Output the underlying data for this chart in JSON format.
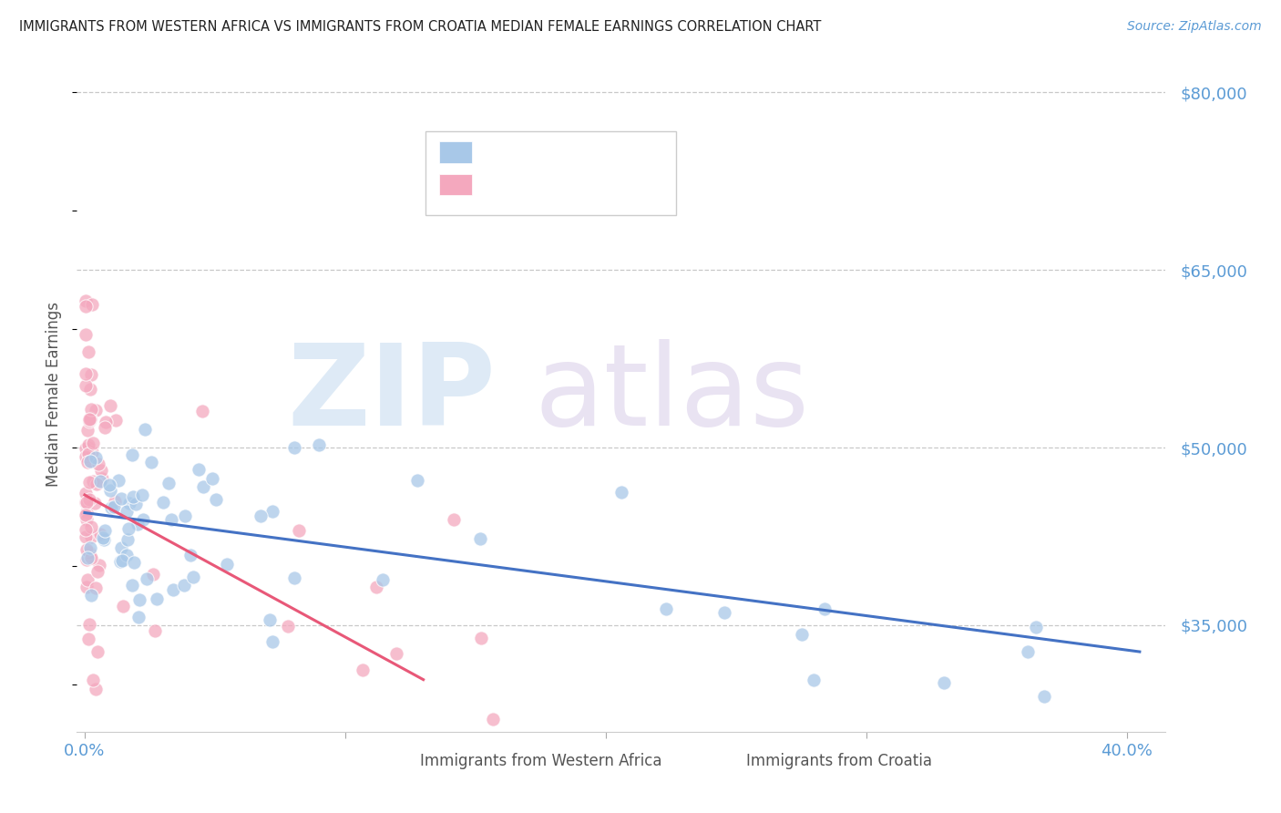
{
  "title": "IMMIGRANTS FROM WESTERN AFRICA VS IMMIGRANTS FROM CROATIA MEDIAN FEMALE EARNINGS CORRELATION CHART",
  "source": "Source: ZipAtlas.com",
  "ylabel": "Median Female Earnings",
  "ytick_vals": [
    35000,
    50000,
    65000,
    80000
  ],
  "ytick_labels": [
    "$35,000",
    "$50,000",
    "$65,000",
    "$80,000"
  ],
  "ymin": 26000,
  "ymax": 83000,
  "xmin": -0.003,
  "xmax": 0.415,
  "blue_scatter_color": "#a8c8e8",
  "pink_scatter_color": "#f4a8be",
  "blue_line_color": "#4472c4",
  "pink_line_color": "#e85878",
  "title_color": "#222222",
  "axis_label_color": "#5b9bd5",
  "grid_color": "#c8c8c8",
  "legend_R_color": "#4472c4",
  "legend_N_color": "#4472c4",
  "legend_text_color": "#333333",
  "watermark_zip_color": "#c8ddf0",
  "watermark_atlas_color": "#d8cce8",
  "bottom_legend_text_color": "#555555"
}
